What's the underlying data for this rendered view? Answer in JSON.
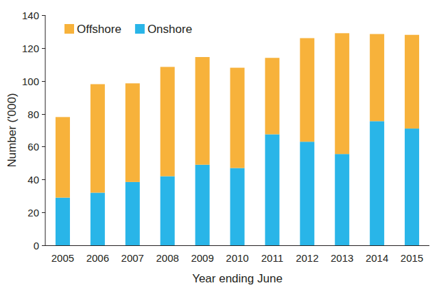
{
  "chart_data": {
    "type": "bar",
    "stacked": true,
    "legend": "upper left",
    "x_label": "Year ending June",
    "y_label": "Number ('000)",
    "categories": [
      "2005",
      "2006",
      "2007",
      "2008",
      "2009",
      "2010",
      "2011",
      "2012",
      "2013",
      "2014",
      "2015"
    ],
    "series": [
      {
        "name": "Onshore",
        "color": "#29b5e8",
        "values": [
          29,
          32,
          38.5,
          42,
          49,
          47,
          67.5,
          63,
          55.5,
          75.5,
          71
        ]
      },
      {
        "name": "Offshore",
        "color": "#f7b23b",
        "values": [
          49,
          66,
          60,
          66.5,
          65.5,
          61,
          46.5,
          63,
          73.5,
          53,
          57
        ]
      }
    ],
    "ylim": [
      0,
      140
    ],
    "yticks": [
      0,
      20,
      40,
      60,
      80,
      100,
      120,
      140
    ],
    "grid": false
  }
}
